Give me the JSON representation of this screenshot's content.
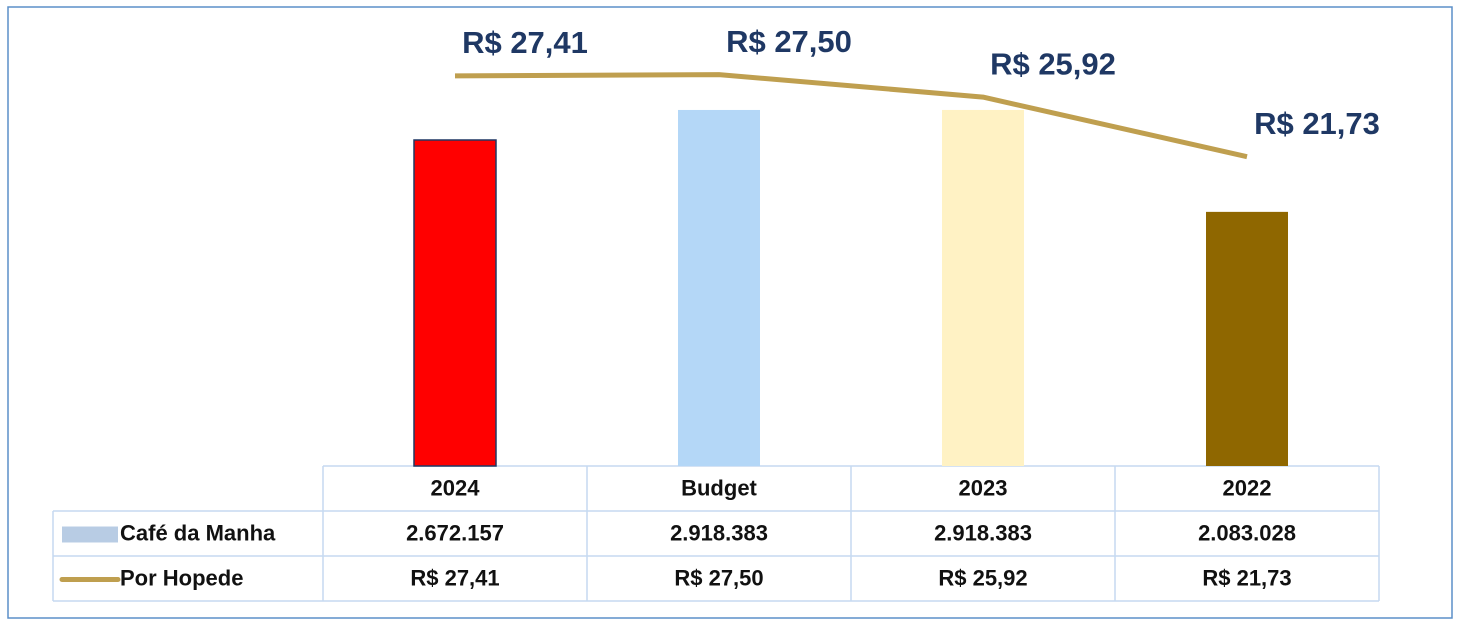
{
  "chart_data": {
    "type": "bar-line",
    "categories": [
      "2024",
      "Budget",
      "2023",
      "2022"
    ],
    "series": [
      {
        "name": "Café da Manha",
        "type": "bar",
        "color": "#b8cce4",
        "colors": [
          "#ff0000",
          "#b4d7f7",
          "#fff2c4",
          "#8f6700"
        ],
        "values": [
          2672157,
          2918383,
          2918383,
          2083028
        ],
        "value_labels": [
          "2.672.157",
          "2.918.383",
          "2.918.383",
          "2.083.028"
        ]
      },
      {
        "name": "Por Hopede",
        "type": "line",
        "axis": "y2",
        "color": "#bf9f4f",
        "values": [
          27.41,
          27.5,
          25.92,
          21.73
        ],
        "value_labels": [
          "R$ 27,41",
          "R$ 27,50",
          "R$ 25,92",
          "R$ 21,73"
        ]
      }
    ],
    "ylim": [
      0,
      3500000
    ],
    "y2lim": [
      0,
      30
    ]
  }
}
